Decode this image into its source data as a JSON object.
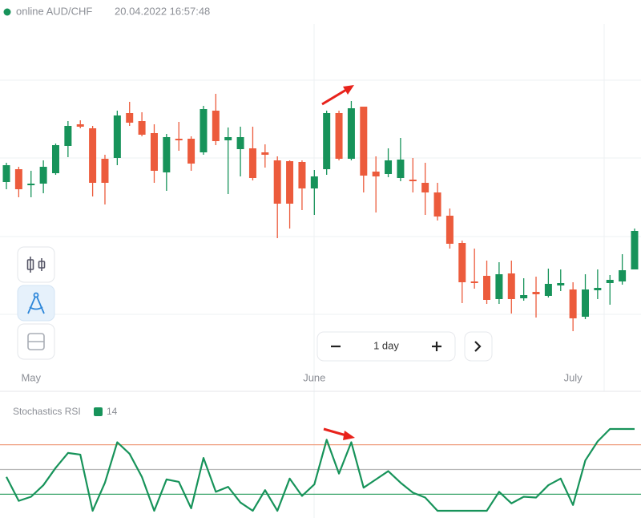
{
  "header": {
    "status": "online AUD/CHF",
    "timestamp": "20.04.2022 16:57:48"
  },
  "zoom": {
    "label": "1 day"
  },
  "chart_data": [
    {
      "type": "candlestick",
      "categories": [
        null,
        null,
        "May",
        null,
        null,
        null,
        null,
        null,
        null,
        null,
        null,
        null,
        null,
        null,
        null,
        null,
        null,
        null,
        null,
        null,
        null,
        null,
        null,
        null,
        null,
        "June",
        null,
        null,
        null,
        null,
        null,
        null,
        null,
        null,
        null,
        null,
        null,
        null,
        null,
        null,
        null,
        null,
        null,
        null,
        null,
        null,
        "July",
        null,
        null,
        null,
        null,
        null
      ],
      "open": [
        273,
        289,
        269,
        271,
        284,
        318,
        345,
        340,
        302,
        303,
        359,
        349,
        334,
        285,
        327,
        327,
        310,
        362,
        325,
        314,
        315,
        310,
        300,
        299,
        298,
        265,
        289,
        359,
        302,
        367,
        286,
        283,
        278,
        276,
        272,
        260,
        231,
        197,
        149,
        156,
        127,
        159,
        128,
        136,
        131,
        144,
        139,
        105,
        138,
        147,
        149,
        164
      ],
      "high": [
        297,
        292,
        287,
        300,
        321,
        349,
        350,
        343,
        307,
        362,
        373,
        360,
        345,
        333,
        348,
        330,
        368,
        383,
        341,
        342,
        342,
        320,
        305,
        300,
        300,
        288,
        362,
        362,
        374,
        367,
        305,
        315,
        328,
        303,
        297,
        272,
        240,
        200,
        190,
        175,
        173,
        175,
        153,
        155,
        165,
        164,
        148,
        158,
        164,
        157,
        183,
        215
      ],
      "low": [
        264,
        254,
        254,
        259,
        282,
        304,
        340,
        255,
        245,
        294,
        343,
        330,
        272,
        262,
        312,
        287,
        307,
        319,
        258,
        280,
        275,
        291,
        203,
        215,
        238,
        232,
        282,
        300,
        300,
        260,
        235,
        279,
        274,
        260,
        232,
        225,
        190,
        122,
        140,
        121,
        121,
        109,
        125,
        104,
        129,
        137,
        87,
        102,
        127,
        120,
        145,
        164
      ],
      "close": [
        294,
        264,
        271,
        292,
        319,
        343,
        342,
        272,
        272,
        356,
        347,
        332,
        287,
        329,
        325,
        296,
        364,
        324,
        329,
        329,
        278,
        307,
        246,
        246,
        265,
        280,
        359,
        302,
        365,
        281,
        280,
        300,
        301,
        274,
        260,
        230,
        196,
        148,
        147,
        126,
        158,
        127,
        132,
        133,
        146,
        147,
        103,
        139,
        141,
        151,
        163,
        212
      ],
      "up_color": "#17935a",
      "down_color": "#ec5b3c",
      "ylim": [
        0,
        500
      ]
    },
    {
      "type": "line",
      "title": "Stochastics RSI",
      "series": [
        {
          "name": "14",
          "color": "#17935a",
          "values": [
            41,
            12,
            17,
            31,
            52,
            70,
            68,
            0,
            34,
            83,
            69,
            41,
            0,
            38,
            35,
            3,
            64,
            23,
            29,
            10,
            0,
            25,
            0,
            39,
            18,
            32,
            86,
            45,
            83,
            28,
            38,
            48,
            34,
            22,
            16,
            0,
            0,
            0,
            0,
            0,
            23,
            9,
            17,
            16,
            31,
            39,
            7,
            61,
            84,
            99,
            99,
            99
          ]
        }
      ],
      "levels": [
        {
          "value": 80,
          "color": "#f0a080"
        },
        {
          "value": 50,
          "color": "#b8b8b8"
        },
        {
          "value": 20,
          "color": "#3aa56a"
        }
      ],
      "ylim": [
        0,
        100
      ]
    }
  ]
}
